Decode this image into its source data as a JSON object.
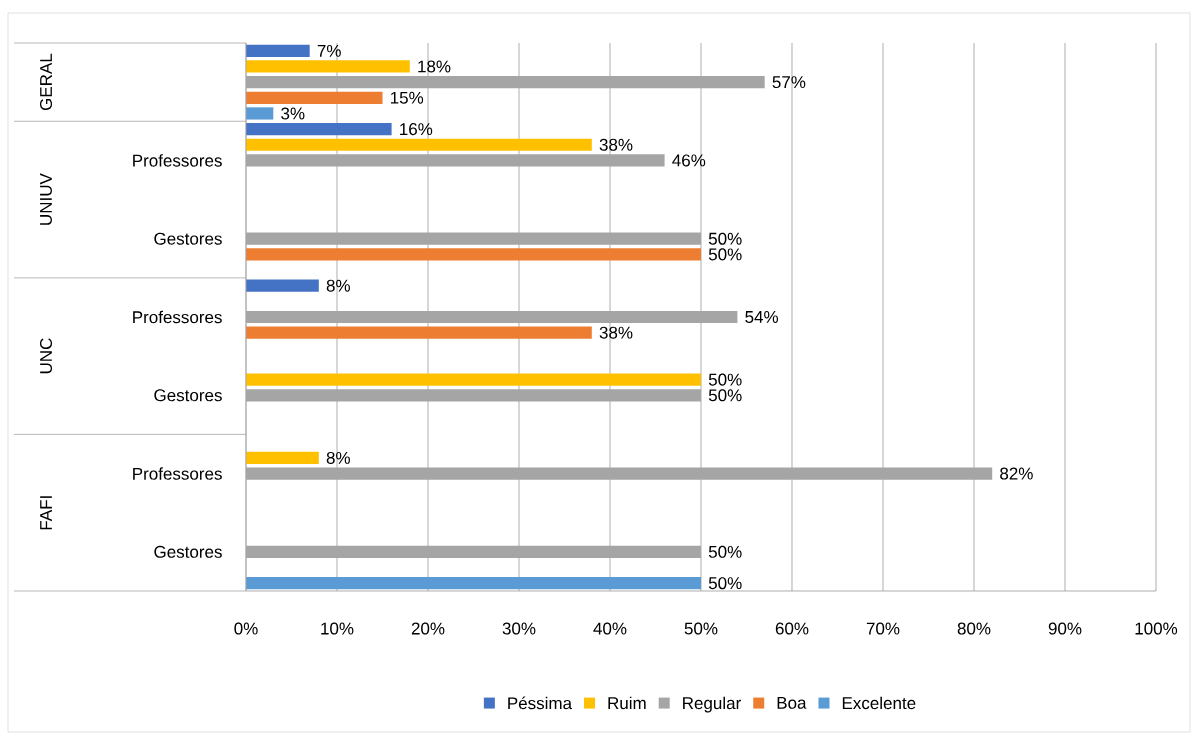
{
  "chart_data": {
    "type": "bar",
    "orientation": "horizontal",
    "categories": [
      null,
      "Professores",
      "Gestores",
      "Professores",
      "Gestores",
      "Professores",
      "Gestores"
    ],
    "annotations": [
      "GERAL",
      "UNIUV",
      "UNC",
      "FAFI"
    ],
    "series": [
      {
        "name": "Péssima",
        "color": "#4472c4",
        "values": [
          7,
          16,
          null,
          8,
          null,
          null,
          null
        ],
        "value_labels": [
          "7%",
          "16%",
          null,
          "8%",
          null,
          null,
          null
        ]
      },
      {
        "name": "Ruim",
        "color": "#ffc000",
        "values": [
          18,
          38,
          null,
          null,
          50,
          8,
          null
        ],
        "value_labels": [
          "18%",
          "38%",
          null,
          null,
          "50%",
          "8%",
          null
        ]
      },
      {
        "name": "Regular",
        "color": "#a5a5a5",
        "values": [
          57,
          46,
          50,
          54,
          50,
          82,
          50
        ],
        "value_labels": [
          "57%",
          "46%",
          "50%",
          "54%",
          "50%",
          "82%",
          "50%"
        ]
      },
      {
        "name": "Boa",
        "color": "#ed7d31",
        "values": [
          15,
          null,
          50,
          38,
          null,
          null,
          null
        ],
        "value_labels": [
          "15%",
          null,
          "50%",
          "38%",
          null,
          null,
          null
        ]
      },
      {
        "name": "Excelente",
        "color": "#5b9bd5",
        "values": [
          3,
          null,
          null,
          null,
          null,
          null,
          50
        ],
        "value_labels": [
          "3%",
          null,
          null,
          null,
          null,
          null,
          "50%"
        ]
      }
    ],
    "xlim": [
      0,
      100
    ],
    "xticks": [
      {
        "value": 0,
        "label": "0%"
      },
      {
        "value": 10,
        "label": "10%"
      },
      {
        "value": 20,
        "label": "20%"
      },
      {
        "value": 30,
        "label": "30%"
      },
      {
        "value": 40,
        "label": "40%"
      },
      {
        "value": 50,
        "label": "50%"
      },
      {
        "value": 60,
        "label": "60%"
      },
      {
        "value": 70,
        "label": "70%"
      },
      {
        "value": 80,
        "label": "80%"
      },
      {
        "value": 90,
        "label": "90%"
      },
      {
        "value": 100,
        "label": "100%"
      }
    ],
    "grid": "x",
    "legend": "bottom"
  }
}
